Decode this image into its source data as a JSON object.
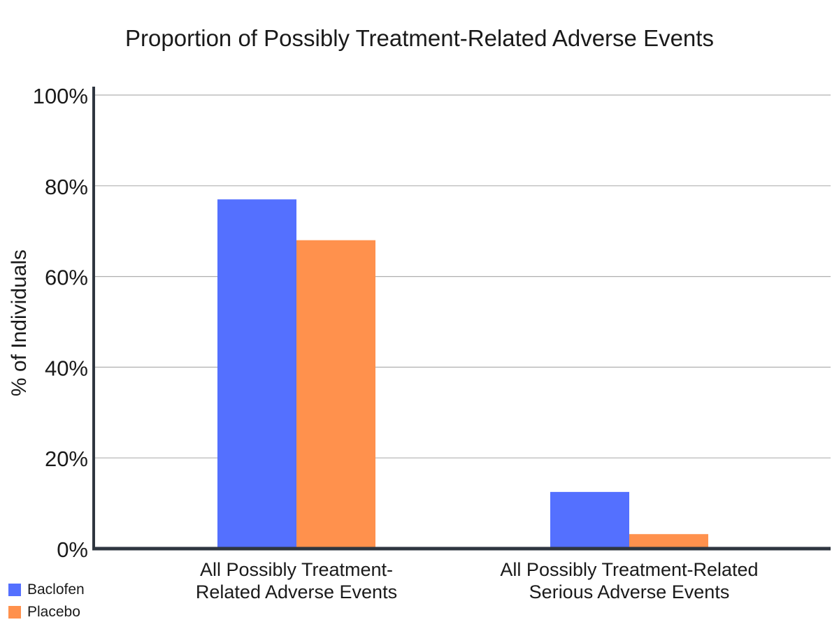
{
  "chart_data": {
    "type": "bar",
    "title": "Proportion of Possibly Treatment-Related Adverse Events",
    "xlabel": "",
    "ylabel": "% of Individuals",
    "categories": [
      [
        "All Possibly Treatment-",
        "Related Adverse Events"
      ],
      [
        "All Possibly Treatment-Related",
        "Serious Adverse Events"
      ]
    ],
    "series": [
      {
        "name": "Baclofen",
        "color": "#5470ff",
        "values": [
          77,
          12.5
        ]
      },
      {
        "name": "Placebo",
        "color": "#ff914d",
        "values": [
          68,
          3.2
        ]
      }
    ],
    "ylim": [
      0,
      100
    ],
    "yticks": [
      0,
      20,
      40,
      60,
      80,
      100
    ],
    "ytick_labels": [
      "0%",
      "20%",
      "40%",
      "60%",
      "80%",
      "100%"
    ],
    "grid": true,
    "legend_position": "bottom-left"
  }
}
